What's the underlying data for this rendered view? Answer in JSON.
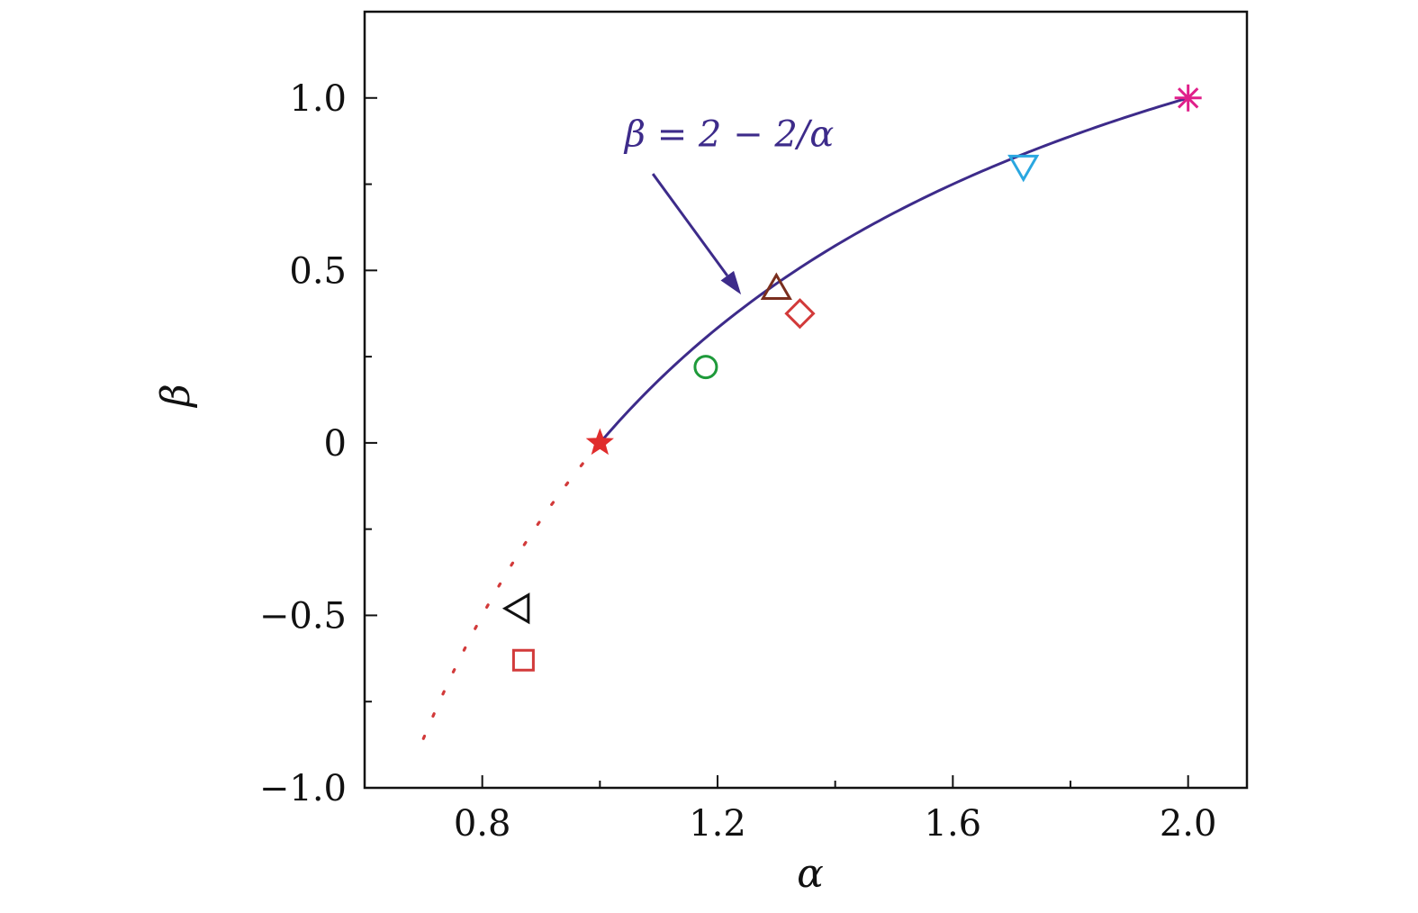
{
  "chart_data": {
    "type": "scatter",
    "xlabel": "α",
    "ylabel": "β",
    "xlim": [
      0.6,
      2.1
    ],
    "ylim": [
      -1.0,
      1.25
    ],
    "xticks": [
      {
        "value": 0.8,
        "label": "0.8"
      },
      {
        "value": 1.2,
        "label": "1.2"
      },
      {
        "value": 1.6,
        "label": "1.6"
      },
      {
        "value": 2.0,
        "label": "2.0"
      }
    ],
    "xminor": [
      1.0,
      1.4,
      1.8
    ],
    "yticks": [
      {
        "value": -1.0,
        "label": "−1.0"
      },
      {
        "value": -0.5,
        "label": "−0.5"
      },
      {
        "value": 0.0,
        "label": "0"
      },
      {
        "value": 0.5,
        "label": "0.5"
      },
      {
        "value": 1.0,
        "label": "1.0"
      }
    ],
    "yminor": [
      -0.75,
      -0.25,
      0.25,
      0.75
    ],
    "curve": {
      "formula": "β = 2 − 2/α",
      "color": "#3d2b8a",
      "solid_range": [
        1.0,
        2.0
      ],
      "dotted_range": [
        0.7,
        1.0
      ],
      "dotted_color": "#d23a3a"
    },
    "annotation": {
      "text": "β = 2 − 2/α",
      "text_at": [
        1.22,
        0.86
      ],
      "arrow_from": [
        1.09,
        0.78
      ],
      "arrow_to": [
        1.24,
        0.43
      ],
      "color": "#3d2b8a"
    },
    "points": [
      {
        "marker": "star",
        "x": 1.0,
        "y": 0.0,
        "color": "#e02d2d",
        "filled": true
      },
      {
        "marker": "circle",
        "x": 1.18,
        "y": 0.22,
        "color": "#1e9a3a"
      },
      {
        "marker": "triangle-up",
        "x": 1.3,
        "y": 0.45,
        "color": "#7a2e1e"
      },
      {
        "marker": "diamond",
        "x": 1.34,
        "y": 0.375,
        "color": "#d23a3a"
      },
      {
        "marker": "triangle-down",
        "x": 1.72,
        "y": 0.8,
        "color": "#2aa7e0"
      },
      {
        "marker": "asterisk",
        "x": 2.0,
        "y": 1.0,
        "color": "#e01f8a"
      },
      {
        "marker": "triangle-left",
        "x": 0.86,
        "y": -0.48,
        "color": "#111111"
      },
      {
        "marker": "square",
        "x": 0.87,
        "y": -0.63,
        "color": "#d23a3a"
      }
    ]
  }
}
